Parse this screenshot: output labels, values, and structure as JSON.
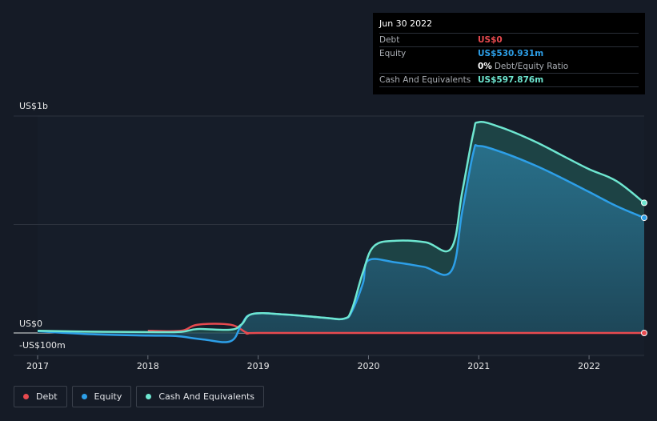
{
  "tooltip": {
    "date": "Jun 30 2022",
    "debt_label": "Debt",
    "debt_value": "US$0",
    "equity_label": "Equity",
    "equity_value": "US$530.931m",
    "ratio_pct": "0%",
    "ratio_label": "Debt/Equity Ratio",
    "cash_label": "Cash And Equivalents",
    "cash_value": "US$597.876m"
  },
  "legend": {
    "debt": "Debt",
    "equity": "Equity",
    "cash": "Cash And Equivalents"
  },
  "colors": {
    "debt": "#e84a4f",
    "equity": "#2d9fe8",
    "cash": "#6ee6d0"
  },
  "chart_data": {
    "type": "area",
    "title": "",
    "y_tick_labels": [
      "US$1b",
      "US$0",
      "-US$100m"
    ],
    "x_tick_labels": [
      "2017",
      "2018",
      "2019",
      "2020",
      "2021",
      "2022"
    ],
    "ylim": [
      -100,
      1000
    ],
    "xlim": [
      2017.0,
      2022.5
    ],
    "series": [
      {
        "name": "Cash And Equivalents",
        "points": [
          [
            2017.0,
            10
          ],
          [
            2017.5,
            6
          ],
          [
            2018.0,
            4
          ],
          [
            2018.3,
            5
          ],
          [
            2018.45,
            18
          ],
          [
            2018.75,
            15
          ],
          [
            2018.85,
            40
          ],
          [
            2018.95,
            88
          ],
          [
            2019.25,
            85
          ],
          [
            2019.6,
            70
          ],
          [
            2019.78,
            66
          ],
          [
            2019.85,
            110
          ],
          [
            2019.95,
            280
          ],
          [
            2020.05,
            400
          ],
          [
            2020.25,
            425
          ],
          [
            2020.52,
            418
          ],
          [
            2020.75,
            390
          ],
          [
            2020.85,
            650
          ],
          [
            2020.95,
            920
          ],
          [
            2021.0,
            972
          ],
          [
            2021.2,
            948
          ],
          [
            2021.5,
            885
          ],
          [
            2021.75,
            820
          ],
          [
            2022.0,
            755
          ],
          [
            2022.25,
            700
          ],
          [
            2022.5,
            600
          ]
        ]
      },
      {
        "name": "Equity",
        "points": [
          [
            2017.0,
            8
          ],
          [
            2017.5,
            -6
          ],
          [
            2018.0,
            -12
          ],
          [
            2018.25,
            -14
          ],
          [
            2018.5,
            -30
          ],
          [
            2018.75,
            -38
          ],
          [
            2018.85,
            40
          ],
          [
            2018.95,
            88
          ],
          [
            2019.25,
            85
          ],
          [
            2019.6,
            70
          ],
          [
            2019.78,
            66
          ],
          [
            2019.85,
            100
          ],
          [
            2019.95,
            230
          ],
          [
            2020.0,
            335
          ],
          [
            2020.25,
            325
          ],
          [
            2020.5,
            305
          ],
          [
            2020.75,
            285
          ],
          [
            2020.85,
            560
          ],
          [
            2020.95,
            830
          ],
          [
            2021.0,
            862
          ],
          [
            2021.2,
            835
          ],
          [
            2021.5,
            775
          ],
          [
            2021.75,
            715
          ],
          [
            2022.0,
            650
          ],
          [
            2022.25,
            585
          ],
          [
            2022.5,
            531
          ]
        ]
      },
      {
        "name": "Debt",
        "points": [
          [
            2018.0,
            10
          ],
          [
            2018.3,
            10
          ],
          [
            2018.45,
            38
          ],
          [
            2018.75,
            38
          ],
          [
            2018.9,
            0
          ],
          [
            2019.0,
            0
          ],
          [
            2020.0,
            0
          ],
          [
            2021.0,
            0
          ],
          [
            2022.0,
            0
          ],
          [
            2022.5,
            0
          ]
        ]
      }
    ]
  }
}
